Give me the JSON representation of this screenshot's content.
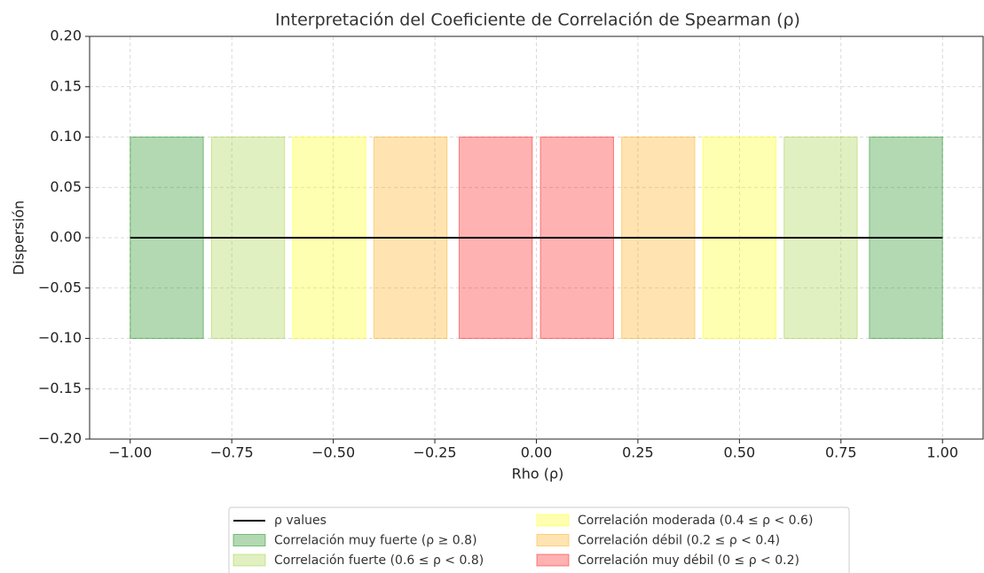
{
  "chart_data": {
    "type": "span",
    "title": "Interpretación del Coeficiente de Correlación de Spearman (ρ)",
    "x_label": "Rho (ρ)",
    "y_label": "Dispersión",
    "xlim": [
      -1.1,
      1.1
    ],
    "ylim": [
      -0.2,
      0.2
    ],
    "xticks": [
      {
        "value": -1,
        "label": "−1.00"
      },
      {
        "value": -0.75,
        "label": "−0.75"
      },
      {
        "value": -0.5,
        "label": "−0.50"
      },
      {
        "value": -0.25,
        "label": "−0.25"
      },
      {
        "value": 0,
        "label": "0.00"
      },
      0.25,
      {
        "value": 0.5,
        "label": "0.50"
      },
      0.75,
      {
        "value": 1,
        "label": "1.00"
      }
    ],
    "yticks": [
      {
        "value": 0.2,
        "label": "0.20"
      },
      0.15,
      {
        "value": 0.1,
        "label": "0.10"
      },
      0.05,
      {
        "value": 0,
        "label": "0.00"
      },
      {
        "value": -0.05,
        "label": "−0.05"
      },
      {
        "value": -0.1,
        "label": "−0.10"
      },
      {
        "value": -0.15,
        "label": "−0.15"
      },
      {
        "value": -0.2,
        "label": "−0.20"
      }
    ],
    "grid": true,
    "line": {
      "name": "ρ values",
      "color": "#000000",
      "x": [
        -1,
        1
      ],
      "values": [
        0,
        0
      ]
    },
    "alpha": 0.3,
    "regions": [
      {
        "name": "Correlación muy fuerte (ρ ≥ 0.8)",
        "color": "green",
        "y": [
          -0.1,
          0.1
        ],
        "spans": [
          [
            -1,
            -0.82
          ],
          [
            0.82,
            1
          ]
        ]
      },
      {
        "name": "Correlación fuerte (0.6 ≤ ρ < 0.8)",
        "color": "yellowgreen",
        "y": [
          -0.1,
          0.1
        ],
        "spans": [
          [
            -0.8,
            -0.62
          ],
          [
            0.61,
            0.79
          ]
        ]
      },
      {
        "name": "Correlación moderada (0.4 ≤ ρ < 0.6)",
        "color": "yellow",
        "y": [
          -0.1,
          0.1
        ],
        "spans": [
          [
            -0.6,
            -0.42
          ],
          [
            0.41,
            0.59
          ]
        ]
      },
      {
        "name": "Correlación débil (0.2 ≤ ρ < 0.4)",
        "color": "orange",
        "y": [
          -0.1,
          0.1
        ],
        "spans": [
          [
            -0.4,
            -0.22
          ],
          [
            0.21,
            0.39
          ]
        ]
      },
      {
        "name": "Correlación muy débil (0 ≤ ρ < 0.2)",
        "color": "red",
        "y": [
          -0.1,
          0.1
        ],
        "spans": [
          [
            -0.19,
            -0.01
          ],
          [
            0.01,
            0.19
          ]
        ]
      }
    ]
  }
}
